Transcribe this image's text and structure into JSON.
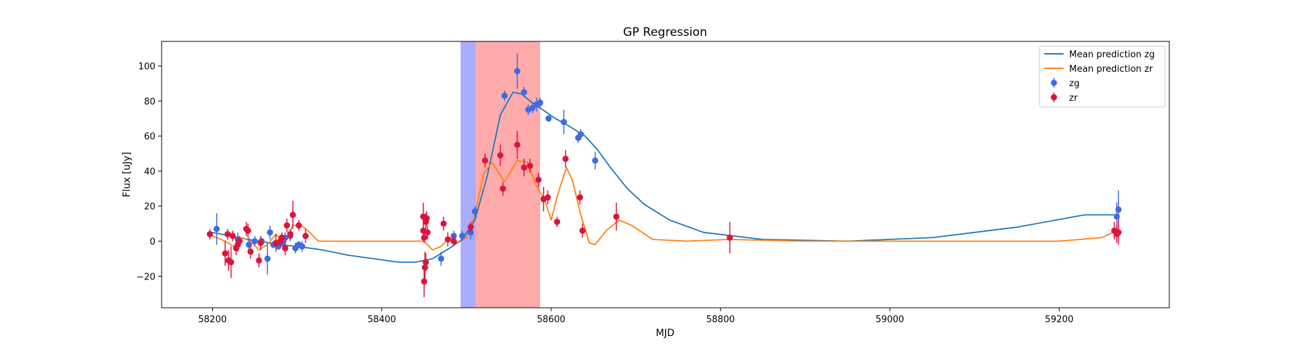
{
  "chart_data": {
    "type": "scatter",
    "title": "GP Regression",
    "xlabel": "MJD",
    "ylabel": "Flux [uJy]",
    "xlim": [
      58140,
      59330
    ],
    "ylim": [
      -38,
      114
    ],
    "xticks": [
      58200,
      58400,
      58600,
      58800,
      59000,
      59200
    ],
    "yticks": [
      -20,
      0,
      20,
      40,
      60,
      80,
      100
    ],
    "grid": false,
    "legend_position": "top-right",
    "shaded_regions": [
      {
        "name": "blue-band",
        "x": [
          58493,
          58511
        ],
        "color": "#0000ff",
        "opacity": 0.33
      },
      {
        "name": "red-band",
        "x": [
          58511,
          58587
        ],
        "color": "#ff0000",
        "opacity": 0.33
      }
    ],
    "lines": [
      {
        "name": "Mean prediction zg",
        "color": "#1f77b4",
        "x": [
          58200,
          58230,
          58255,
          58280,
          58300,
          58330,
          58360,
          58390,
          58420,
          58440,
          58460,
          58480,
          58495,
          58510,
          58525,
          58540,
          58555,
          58565,
          58575,
          58590,
          58605,
          58620,
          58640,
          58655,
          58670,
          58690,
          58710,
          58740,
          58780,
          58850,
          58950,
          59050,
          59150,
          59230,
          59265
        ],
        "y": [
          5,
          2,
          0,
          -2,
          -3,
          -5,
          -8,
          -10,
          -12,
          -12,
          -10,
          -4,
          1,
          12,
          38,
          72,
          85,
          84,
          80,
          75,
          70,
          66,
          60,
          52,
          42,
          30,
          21,
          12,
          5,
          1,
          0,
          2,
          8,
          15,
          15
        ]
      },
      {
        "name": "Mean prediction zr",
        "color": "#ff7f0e",
        "x": [
          58200,
          58215,
          58225,
          58235,
          58245,
          58255,
          58265,
          58275,
          58285,
          58295,
          58305,
          58315,
          58325,
          58340,
          58400,
          58450,
          58460,
          58470,
          58480,
          58490,
          58500,
          58510,
          58520,
          58530,
          58545,
          58560,
          58572,
          58582,
          58592,
          58600,
          58608,
          58618,
          58625,
          58635,
          58645,
          58652,
          58665,
          58680,
          58695,
          58720,
          58760,
          58810,
          58900,
          59000,
          59100,
          59200,
          59250,
          59268
        ],
        "y": [
          3,
          0,
          -3,
          2,
          0,
          -5,
          -2,
          4,
          -2,
          9,
          9,
          5,
          0,
          0,
          0,
          0,
          -5,
          -3,
          2,
          -1,
          2,
          15,
          38,
          45,
          34,
          46,
          45,
          32,
          24,
          12,
          27,
          42,
          35,
          15,
          -1,
          -2,
          6,
          12,
          9,
          1,
          0,
          1,
          0,
          0,
          0,
          0,
          2,
          6
        ]
      }
    ],
    "series": [
      {
        "name": "zg",
        "color": "#4169e1",
        "points": [
          [
            58205,
            7,
            9
          ],
          [
            58230,
            1,
            4
          ],
          [
            58243,
            -2,
            4
          ],
          [
            58250,
            0,
            3
          ],
          [
            58258,
            0,
            2
          ],
          [
            58265,
            -10,
            9
          ],
          [
            58268,
            5,
            4
          ],
          [
            58272,
            -2,
            2
          ],
          [
            58278,
            -3,
            2
          ],
          [
            58283,
            -1,
            4
          ],
          [
            58286,
            2,
            3
          ],
          [
            58292,
            3,
            3
          ],
          [
            58298,
            -4,
            3
          ],
          [
            58302,
            -2,
            2
          ],
          [
            58306,
            -3,
            3
          ],
          [
            58470,
            -10,
            4
          ],
          [
            58485,
            3,
            3
          ],
          [
            58495,
            3,
            3
          ],
          [
            58505,
            5,
            4
          ],
          [
            58510,
            17,
            3
          ],
          [
            58545,
            83,
            3
          ],
          [
            58560,
            97,
            10
          ],
          [
            58568,
            85,
            3
          ],
          [
            58573,
            75,
            3
          ],
          [
            58578,
            76,
            3
          ],
          [
            58583,
            78,
            4
          ],
          [
            58587,
            79,
            3
          ],
          [
            58597,
            70,
            2
          ],
          [
            58615,
            68,
            7
          ],
          [
            58632,
            59,
            3
          ],
          [
            58635,
            61,
            3
          ],
          [
            58652,
            46,
            5
          ],
          [
            59268,
            14,
            8
          ],
          [
            59270,
            18,
            11
          ]
        ]
      },
      {
        "name": "zr",
        "color": "#dc143c",
        "points": [
          [
            58197,
            4,
            3
          ],
          [
            58215,
            -7,
            7
          ],
          [
            58218,
            4,
            3
          ],
          [
            58219,
            -11,
            6
          ],
          [
            58222,
            -12,
            9
          ],
          [
            58224,
            3,
            3
          ],
          [
            58228,
            -4,
            4
          ],
          [
            58230,
            -2,
            4
          ],
          [
            58232,
            0,
            3
          ],
          [
            58240,
            7,
            4
          ],
          [
            58242,
            6,
            4
          ],
          [
            58245,
            -6,
            4
          ],
          [
            58255,
            -11,
            4
          ],
          [
            58257,
            -1,
            4
          ],
          [
            58275,
            -1,
            5
          ],
          [
            58280,
            0,
            3
          ],
          [
            58282,
            2,
            3
          ],
          [
            58286,
            -4,
            4
          ],
          [
            58288,
            9,
            4
          ],
          [
            58292,
            4,
            3
          ],
          [
            58295,
            15,
            8
          ],
          [
            58302,
            9,
            3
          ],
          [
            58310,
            3,
            4
          ],
          [
            58449,
            14,
            8
          ],
          [
            58450,
            -23,
            9
          ],
          [
            58451,
            -15,
            9
          ],
          [
            58452,
            11,
            5
          ],
          [
            58453,
            13,
            4
          ],
          [
            58452,
            -12,
            5
          ],
          [
            58449,
            6,
            4
          ],
          [
            58450,
            2,
            3
          ],
          [
            58454,
            5,
            4
          ],
          [
            58473,
            10,
            4
          ],
          [
            58478,
            1,
            4
          ],
          [
            58485,
            0,
            3
          ],
          [
            58505,
            8,
            3
          ],
          [
            58522,
            46,
            4
          ],
          [
            58540,
            49,
            6
          ],
          [
            58543,
            30,
            4
          ],
          [
            58560,
            55,
            8
          ],
          [
            58568,
            42,
            5
          ],
          [
            58575,
            43,
            4
          ],
          [
            58585,
            35,
            4
          ],
          [
            58591,
            24,
            7
          ],
          [
            58596,
            25,
            4
          ],
          [
            58607,
            11,
            3
          ],
          [
            58617,
            47,
            5
          ],
          [
            58634,
            25,
            4
          ],
          [
            58637,
            6,
            4
          ],
          [
            58677,
            14,
            8
          ],
          [
            58811,
            2,
            9
          ],
          [
            59265,
            6,
            5
          ],
          [
            59268,
            4,
            5
          ],
          [
            59270,
            5,
            7
          ]
        ]
      }
    ]
  }
}
